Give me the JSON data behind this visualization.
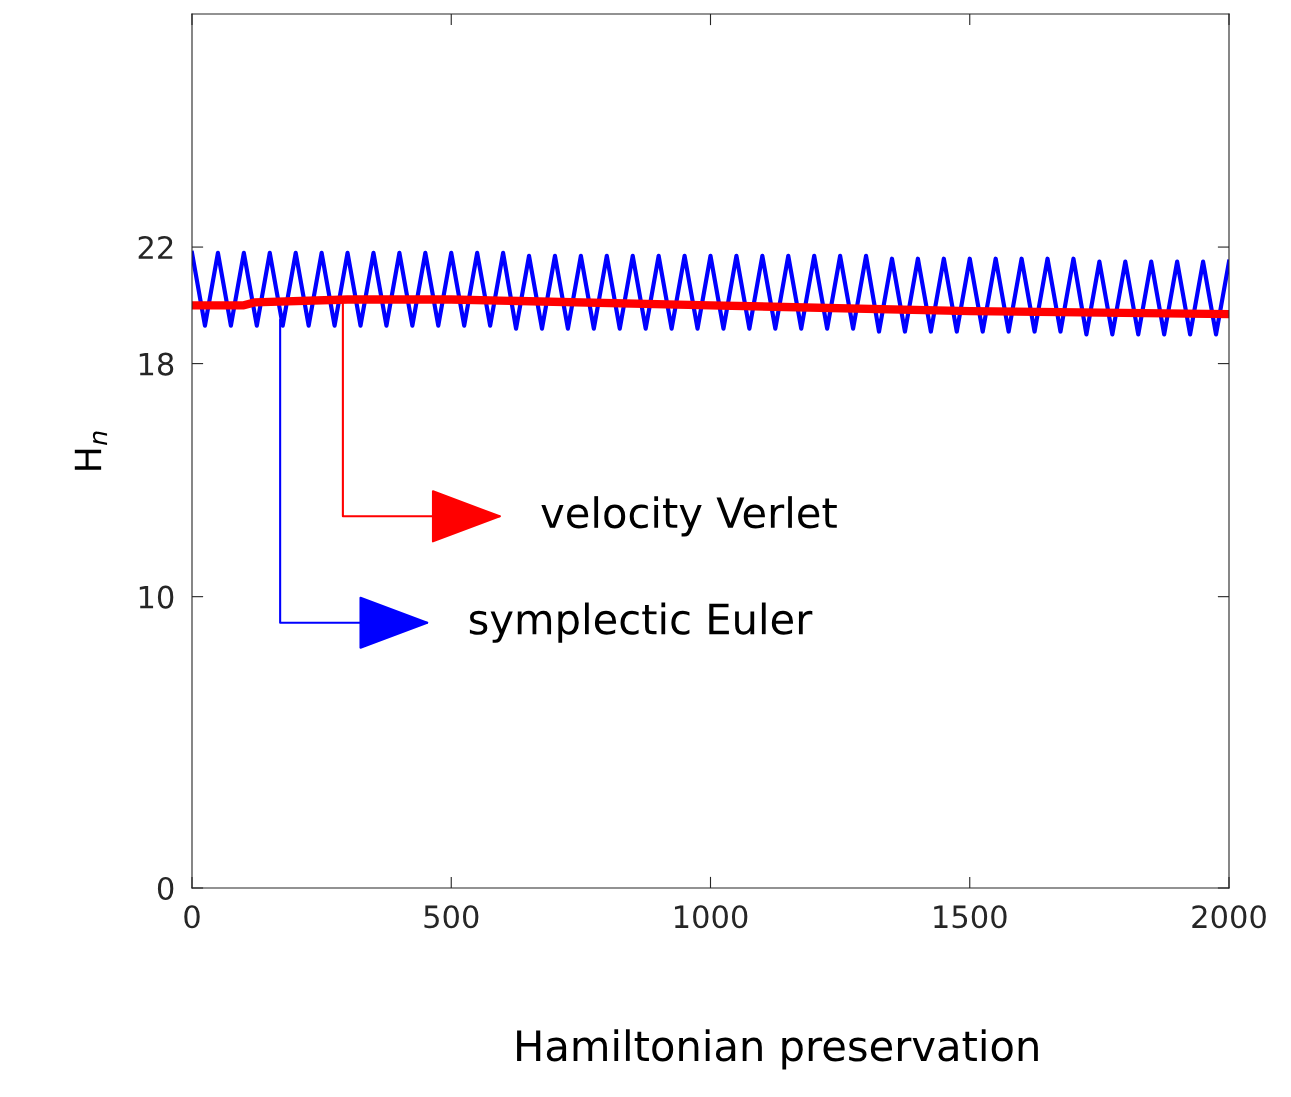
{
  "chart_data": {
    "type": "line",
    "xlabel": "Hamiltonian preservation",
    "ylabel": "H$_{n}$",
    "xlim": [
      0,
      2000
    ],
    "xticks": [
      0,
      500,
      1000,
      1500,
      2000
    ],
    "ylim": [
      0,
      30
    ],
    "yticks": [
      0,
      10,
      18,
      22
    ],
    "grid": false,
    "legend": false,
    "marker": "none",
    "line_style": "solid",
    "series": [
      {
        "color": "#0000ff",
        "x": [
          0,
          25,
          50,
          75,
          100,
          125,
          150,
          175,
          200,
          225,
          250,
          275,
          300,
          325,
          350,
          375,
          400,
          425,
          450,
          475,
          500,
          525,
          550,
          575,
          600,
          625,
          650,
          675,
          700,
          725,
          750,
          775,
          800,
          825,
          850,
          875,
          900,
          925,
          950,
          975,
          1000,
          1025,
          1050,
          1075,
          1100,
          1125,
          1150,
          1175,
          1200,
          1225,
          1250,
          1275,
          1300,
          1325,
          1350,
          1375,
          1400,
          1425,
          1450,
          1475,
          1500,
          1525,
          1550,
          1575,
          1600,
          1625,
          1650,
          1675,
          1700,
          1725,
          1750,
          1775,
          1800,
          1825,
          1850,
          1875,
          1900,
          1925,
          1950,
          1975,
          2000
        ],
        "values": [
          21.8,
          19.3,
          21.8,
          19.3,
          21.8,
          19.3,
          21.8,
          19.3,
          21.8,
          19.3,
          21.8,
          19.3,
          21.8,
          19.3,
          21.8,
          19.3,
          21.8,
          19.3,
          21.8,
          19.3,
          21.8,
          19.3,
          21.8,
          19.3,
          21.8,
          19.2,
          21.7,
          19.2,
          21.7,
          19.2,
          21.7,
          19.2,
          21.7,
          19.2,
          21.7,
          19.2,
          21.7,
          19.2,
          21.7,
          19.2,
          21.7,
          19.2,
          21.7,
          19.2,
          21.7,
          19.2,
          21.7,
          19.2,
          21.7,
          19.2,
          21.7,
          19.2,
          21.7,
          19.1,
          21.6,
          19.1,
          21.6,
          19.1,
          21.6,
          19.1,
          21.6,
          19.1,
          21.6,
          19.1,
          21.6,
          19.1,
          21.6,
          19.1,
          21.6,
          19.0,
          21.5,
          19.0,
          21.5,
          19.0,
          21.5,
          19.0,
          21.5,
          19.0,
          21.5,
          19.0,
          21.5
        ]
      },
      {
        "color": "#ff0000",
        "x": [
          0,
          100,
          120,
          300,
          500,
          1000,
          1500,
          2000
        ],
        "values": [
          20.0,
          20.0,
          20.1,
          20.2,
          20.2,
          20.0,
          19.8,
          19.7
        ]
      }
    ],
    "annotations": [
      {
        "text": "symplectic Euler",
        "x": 170,
        "y": 19.5
      },
      {
        "text": "velocity Verlet",
        "x": 291,
        "y": 20.1
      }
    ]
  }
}
